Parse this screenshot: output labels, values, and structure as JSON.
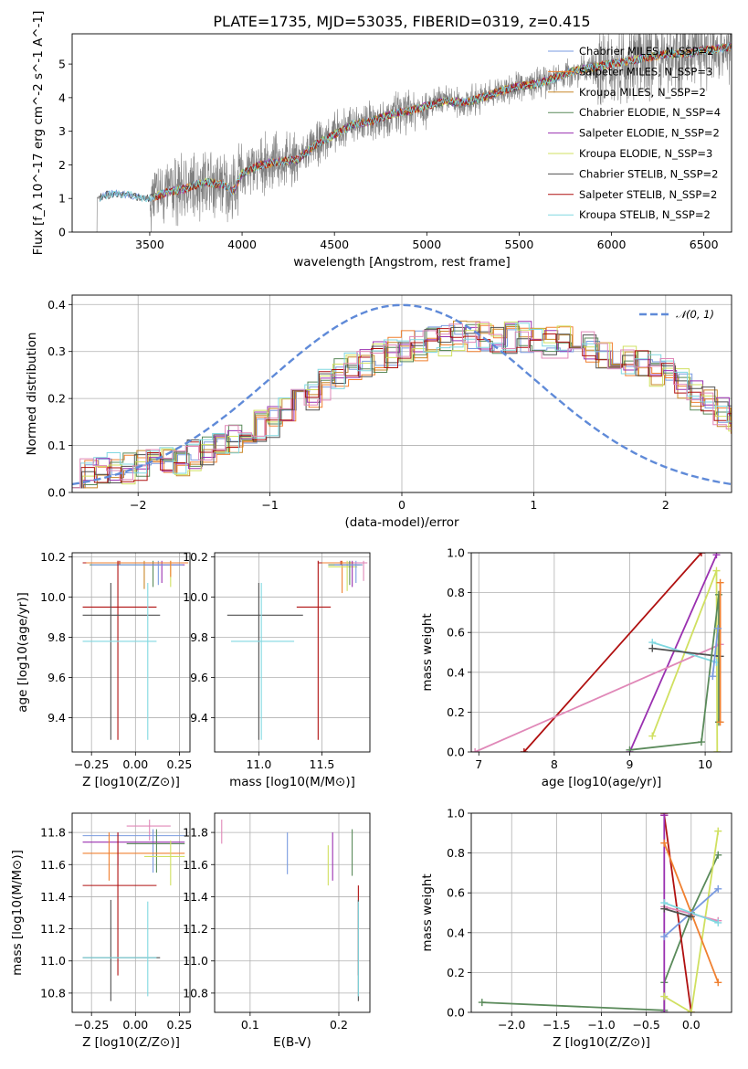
{
  "title": "PLATE=1735, MJD=53035, FIBERID=0319, z=0.415",
  "colors": {
    "data": "#808080",
    "models": [
      "#7a9be0",
      "#f08030",
      "#c8882a",
      "#5a8a5a",
      "#9a30b0",
      "#d0e060",
      "#505050",
      "#b01010",
      "#80d8e0"
    ],
    "pink": "#e088b8"
  },
  "chart_data": [
    {
      "id": "spectrum",
      "type": "line",
      "xlabel": "wavelength [Angstrom, rest frame]",
      "ylabel": "Flux [f_λ 10^-17 erg cm^-2 s^-1 A^-1]",
      "xlim": [
        3080,
        6650
      ],
      "ylim": [
        0,
        5.9
      ],
      "xticks": [
        3500,
        4000,
        4500,
        5000,
        5500,
        6000,
        6500
      ],
      "yticks": [
        0,
        1,
        2,
        3,
        4,
        5
      ],
      "legend_position": "top-right",
      "legend": [
        "Chabrier MILES, N_SSP=2",
        "Salpeter MILES, N_SSP=3",
        "Kroupa MILES, N_SSP=2",
        "Chabrier ELODIE, N_SSP=4",
        "Salpeter ELODIE, N_SSP=2",
        "Kroupa ELODIE, N_SSP=3",
        "Chabrier STELIB, N_SSP=2",
        "Salpeter STELIB, N_SSP=2",
        "Kroupa STELIB, N_SSP=2"
      ],
      "continuum": [
        [
          3210,
          1.0
        ],
        [
          3300,
          1.15
        ],
        [
          3400,
          1.1
        ],
        [
          3500,
          1.0
        ],
        [
          3600,
          1.2
        ],
        [
          3700,
          1.3
        ],
        [
          3800,
          1.5
        ],
        [
          3900,
          1.4
        ],
        [
          3950,
          1.2
        ],
        [
          4000,
          1.75
        ],
        [
          4100,
          2.0
        ],
        [
          4200,
          2.1
        ],
        [
          4300,
          2.15
        ],
        [
          4400,
          2.6
        ],
        [
          4500,
          2.9
        ],
        [
          4600,
          3.2
        ],
        [
          4700,
          3.3
        ],
        [
          4800,
          3.5
        ],
        [
          4900,
          3.6
        ],
        [
          5000,
          3.75
        ],
        [
          5100,
          3.9
        ],
        [
          5200,
          3.85
        ],
        [
          5300,
          4.0
        ],
        [
          5400,
          4.2
        ],
        [
          5500,
          4.35
        ],
        [
          5600,
          4.4
        ],
        [
          5700,
          4.6
        ],
        [
          5800,
          4.8
        ],
        [
          5900,
          4.9
        ],
        [
          6000,
          5.0
        ],
        [
          6100,
          5.1
        ],
        [
          6200,
          5.2
        ],
        [
          6300,
          5.3
        ],
        [
          6400,
          5.3
        ],
        [
          6500,
          5.4
        ],
        [
          6650,
          5.5
        ]
      ]
    },
    {
      "id": "residuals",
      "type": "histogram",
      "xlabel": "(data-model)/error",
      "ylabel": "Normed distribution",
      "xlim": [
        -2.5,
        2.5
      ],
      "ylim": [
        0,
        0.42
      ],
      "xticks": [
        -2,
        -1,
        0,
        1,
        2
      ],
      "yticks": [
        0.0,
        0.1,
        0.2,
        0.3,
        0.4
      ],
      "gaussian_label": "𝒩(0, 1)",
      "legend_position": "top-right",
      "bin_width": 0.1,
      "profile": [
        0.04,
        0.04,
        0.05,
        0.05,
        0.05,
        0.06,
        0.06,
        0.07,
        0.07,
        0.08,
        0.09,
        0.1,
        0.11,
        0.12,
        0.14,
        0.15,
        0.17,
        0.19,
        0.21,
        0.23,
        0.25,
        0.27,
        0.28,
        0.29,
        0.3,
        0.31,
        0.31,
        0.32,
        0.32,
        0.33,
        0.33,
        0.33,
        0.33,
        0.33,
        0.33,
        0.33,
        0.32,
        0.32,
        0.31,
        0.31,
        0.3,
        0.29,
        0.28,
        0.27,
        0.26,
        0.25,
        0.23,
        0.21,
        0.19,
        0.17,
        0.16,
        0.15,
        0.14,
        0.13,
        0.12,
        0.11,
        0.1,
        0.09,
        0.08,
        0.08,
        0.07,
        0.07,
        0.07,
        0.06,
        0.06,
        0.06,
        0.06,
        0.06,
        0.05,
        0.05,
        0.05
      ]
    },
    {
      "id": "age-vs-Z",
      "type": "errorbar",
      "xlabel": "Z [log10(Z/Z⊙)]",
      "ylabel": "age [log10(age/yr)]",
      "xlim": [
        -0.36,
        0.31
      ],
      "ylim": [
        9.23,
        10.22
      ],
      "xticks": [
        -0.25,
        0.0,
        0.25
      ],
      "xticklabels": [
        "−0.25",
        "0.00",
        "0.25"
      ],
      "yticks": [
        9.4,
        9.6,
        9.8,
        10.0,
        10.2
      ],
      "points": [
        {
          "c": 7,
          "x": -0.09,
          "y": 10.17,
          "xe": [
            -0.3,
            0.28
          ],
          "ye": [
            10.16,
            10.18
          ]
        },
        {
          "c": 2,
          "x": 0.05,
          "y": 10.17,
          "xe": [
            -0.28,
            0.27
          ],
          "ye": [
            10.04,
            10.18
          ]
        },
        {
          "c": 3,
          "x": 0.1,
          "y": 10.16,
          "xe": [
            -0.26,
            0.27
          ],
          "ye": [
            10.05,
            10.18
          ]
        },
        {
          "c": 4,
          "x": 0.15,
          "y": 10.16,
          "xe": [
            0.05,
            0.28
          ],
          "ye": [
            10.07,
            10.18
          ]
        },
        {
          "c": 0,
          "x": 0.13,
          "y": 10.16,
          "xe": [
            -0.25,
            0.27
          ],
          "ye": [
            10.06,
            10.18
          ]
        },
        {
          "c": 5,
          "x": 0.2,
          "y": 10.17,
          "xe": [
            -0.1,
            0.3
          ],
          "ye": [
            10.05,
            10.18
          ]
        },
        {
          "c": 1,
          "x": 0.2,
          "y": 10.17,
          "xe": [
            -0.28,
            0.3
          ],
          "ye": [
            10.1,
            10.18
          ]
        },
        {
          "c": 7,
          "x": -0.1,
          "y": 9.95,
          "xe": [
            -0.3,
            0.12
          ],
          "ye": [
            9.29,
            10.18
          ]
        },
        {
          "c": 6,
          "x": -0.14,
          "y": 9.91,
          "xe": [
            -0.3,
            0.14
          ],
          "ye": [
            9.29,
            10.07
          ]
        },
        {
          "c": 8,
          "x": 0.07,
          "y": 9.78,
          "xe": [
            -0.3,
            0.12
          ],
          "ye": [
            9.29,
            10.07
          ]
        }
      ]
    },
    {
      "id": "age-vs-mass",
      "type": "errorbar",
      "xlabel": "mass [log10(M/M⊙)]",
      "ylabel": "",
      "xlim": [
        10.65,
        11.88
      ],
      "ylim": [
        9.23,
        10.22
      ],
      "xticks": [
        11.0,
        11.5
      ],
      "yticks": [
        9.4,
        9.6,
        9.8,
        10.0,
        10.2
      ],
      "points": [
        {
          "c": 7,
          "x": 11.65,
          "y": 10.17,
          "xe": [
            11.47,
            11.8
          ],
          "ye": [
            10.16,
            10.18
          ]
        },
        {
          "c": 1,
          "x": 11.66,
          "y": 10.17,
          "xe": [
            11.5,
            11.8
          ],
          "ye": [
            10.02,
            10.18
          ]
        },
        {
          "c": 5,
          "x": 11.7,
          "y": 10.15,
          "xe": [
            11.55,
            11.78
          ],
          "ye": [
            10.03,
            10.18
          ]
        },
        {
          "c": 4,
          "x": 11.74,
          "y": 10.16,
          "xe": [
            11.6,
            11.8
          ],
          "ye": [
            10.05,
            10.18
          ]
        },
        {
          "c": 3,
          "x": 11.72,
          "y": 10.16,
          "xe": [
            11.55,
            11.82
          ],
          "ye": [
            10.06,
            10.18
          ]
        },
        {
          "c": 0,
          "x": 11.77,
          "y": 10.16,
          "xe": [
            11.6,
            11.82
          ],
          "ye": [
            10.07,
            10.18
          ]
        },
        {
          "c": 9,
          "x": 11.83,
          "y": 10.17,
          "xe": [
            11.75,
            11.86
          ],
          "ye": [
            10.08,
            10.18
          ]
        },
        {
          "c": 7,
          "x": 11.47,
          "y": 9.95,
          "xe": [
            11.3,
            11.57
          ],
          "ye": [
            9.29,
            10.18
          ]
        },
        {
          "c": 6,
          "x": 11.0,
          "y": 9.91,
          "xe": [
            10.75,
            11.35
          ],
          "ye": [
            9.29,
            10.07
          ]
        },
        {
          "c": 8,
          "x": 11.02,
          "y": 9.78,
          "xe": [
            10.78,
            11.28
          ],
          "ye": [
            9.29,
            10.07
          ]
        }
      ]
    },
    {
      "id": "weight-vs-age",
      "type": "line",
      "xlabel": "age [log10(age/yr)]",
      "ylabel": "mass weight",
      "xlim": [
        6.9,
        10.35
      ],
      "ylim": [
        0,
        1.0
      ],
      "xticks": [
        7,
        8,
        9,
        10
      ],
      "yticks": [
        0.0,
        0.2,
        0.4,
        0.6,
        0.8,
        1.0
      ],
      "series": [
        {
          "c": 7,
          "x": [
            7.6,
            9.95
          ],
          "y": [
            0.0,
            1.0
          ]
        },
        {
          "c": 4,
          "x": [
            9.0,
            10.15
          ],
          "y": [
            0.0,
            0.99
          ]
        },
        {
          "c": 5,
          "x": [
            9.3,
            10.15,
            10.16
          ],
          "y": [
            0.08,
            0.91,
            0.0
          ]
        },
        {
          "c": 9,
          "x": [
            6.95,
            10.2
          ],
          "y": [
            0.0,
            0.54
          ]
        },
        {
          "c": 8,
          "x": [
            9.3,
            10.15
          ],
          "y": [
            0.55,
            0.45
          ]
        },
        {
          "c": 6,
          "x": [
            9.3,
            10.2
          ],
          "y": [
            0.52,
            0.48
          ]
        },
        {
          "c": 3,
          "x": [
            9.0,
            9.95,
            10.18,
            10.18
          ],
          "y": [
            0.01,
            0.05,
            0.79,
            0.15
          ]
        },
        {
          "c": 1,
          "x": [
            10.2,
            10.2
          ],
          "y": [
            0.85,
            0.15
          ]
        },
        {
          "c": 0,
          "x": [
            10.1,
            10.17
          ],
          "y": [
            0.38,
            0.62
          ]
        }
      ]
    },
    {
      "id": "mass-vs-Z",
      "type": "errorbar",
      "xlabel": "Z [log10(Z/Z⊙)]",
      "ylabel": "mass [log10(M/M⊙)]",
      "xlim": [
        -0.36,
        0.31
      ],
      "ylim": [
        10.68,
        11.92
      ],
      "xticks": [
        -0.25,
        0.0,
        0.25
      ],
      "xticklabels": [
        "−0.25",
        "0.00",
        "0.25"
      ],
      "yticks": [
        10.8,
        11.0,
        11.2,
        11.4,
        11.6,
        11.8
      ],
      "points": [
        {
          "c": 9,
          "x": 0.08,
          "y": 11.84,
          "xe": [
            -0.05,
            0.2
          ],
          "ye": [
            11.75,
            11.88
          ]
        },
        {
          "c": 0,
          "x": 0.1,
          "y": 11.78,
          "xe": [
            -0.3,
            0.28
          ],
          "ye": [
            11.55,
            11.82
          ]
        },
        {
          "c": 4,
          "x": -0.1,
          "y": 11.74,
          "xe": [
            -0.3,
            0.28
          ],
          "ye": [
            11.6,
            11.8
          ]
        },
        {
          "c": 3,
          "x": 0.12,
          "y": 11.73,
          "xe": [
            -0.05,
            0.28
          ],
          "ye": [
            11.55,
            11.82
          ]
        },
        {
          "c": 1,
          "x": -0.15,
          "y": 11.67,
          "xe": [
            -0.3,
            0.28
          ],
          "ye": [
            11.5,
            11.8
          ]
        },
        {
          "c": 5,
          "x": 0.2,
          "y": 11.65,
          "xe": [
            0.05,
            0.28
          ],
          "ye": [
            11.47,
            11.75
          ]
        },
        {
          "c": 7,
          "x": -0.1,
          "y": 11.47,
          "xe": [
            -0.3,
            0.12
          ],
          "ye": [
            10.91,
            11.8
          ]
        },
        {
          "c": 6,
          "x": -0.14,
          "y": 11.02,
          "xe": [
            -0.3,
            0.14
          ],
          "ye": [
            10.75,
            11.38
          ]
        },
        {
          "c": 8,
          "x": 0.07,
          "y": 11.02,
          "xe": [
            -0.3,
            0.12
          ],
          "ye": [
            10.78,
            11.37
          ]
        }
      ]
    },
    {
      "id": "mass-vs-EBV",
      "type": "errorbar",
      "xlabel": "E(B-V)",
      "ylabel": "",
      "xlim": [
        0.06,
        0.235
      ],
      "ylim": [
        10.68,
        11.92
      ],
      "xticks": [
        0.1,
        0.2
      ],
      "yticks": [
        10.8,
        11.0,
        11.2,
        11.4,
        11.6,
        11.8
      ],
      "points": [
        {
          "c": 9,
          "x": 0.068,
          "ye": [
            11.73,
            11.88
          ]
        },
        {
          "c": 0,
          "x": 0.142,
          "ye": [
            11.54,
            11.8
          ]
        },
        {
          "c": 5,
          "x": 0.188,
          "ye": [
            11.47,
            11.72
          ]
        },
        {
          "c": 4,
          "x": 0.193,
          "ye": [
            11.5,
            11.8
          ]
        },
        {
          "c": 3,
          "x": 0.215,
          "ye": [
            11.53,
            11.82
          ]
        },
        {
          "c": 7,
          "x": 0.222,
          "ye": [
            10.91,
            11.47
          ]
        },
        {
          "c": 6,
          "x": 0.222,
          "ye": [
            10.75,
            11.38
          ]
        },
        {
          "c": 8,
          "x": 0.222,
          "ye": [
            10.78,
            11.37
          ]
        }
      ]
    },
    {
      "id": "weight-vs-Z",
      "type": "line",
      "xlabel": "Z [log10(Z/Z⊙)]",
      "ylabel": "mass weight",
      "xlim": [
        -2.45,
        0.45
      ],
      "ylim": [
        0,
        1.0
      ],
      "xticks": [
        -2.0,
        -1.5,
        -1.0,
        -0.5,
        0.0
      ],
      "xticklabels": [
        "−2.0",
        "−1.5",
        "−1.0",
        "−0.5",
        "0.0"
      ],
      "yticks": [
        0.0,
        0.2,
        0.4,
        0.6,
        0.8,
        1.0
      ],
      "series": [
        {
          "c": 3,
          "x": [
            -2.33,
            -0.3,
            -0.3,
            0.0,
            0.3
          ],
          "y": [
            0.05,
            0.01,
            0.15,
            0.5,
            0.79
          ]
        },
        {
          "c": 7,
          "x": [
            -0.3,
            -0.3,
            0.0
          ],
          "y": [
            1.0,
            0.99,
            0.0
          ]
        },
        {
          "c": 4,
          "x": [
            -0.3,
            -0.3
          ],
          "y": [
            0.99,
            0.0
          ]
        },
        {
          "c": 5,
          "x": [
            -0.3,
            0.0,
            0.3
          ],
          "y": [
            0.08,
            0.0,
            0.91
          ]
        },
        {
          "c": 1,
          "x": [
            -0.3,
            0.3
          ],
          "y": [
            0.85,
            0.15
          ]
        },
        {
          "c": 0,
          "x": [
            -0.3,
            0.3
          ],
          "y": [
            0.38,
            0.62
          ]
        },
        {
          "c": 9,
          "x": [
            -0.3,
            0.3
          ],
          "y": [
            0.53,
            0.46
          ]
        },
        {
          "c": 8,
          "x": [
            -0.3,
            0.3
          ],
          "y": [
            0.55,
            0.45
          ]
        },
        {
          "c": 6,
          "x": [
            -0.3,
            0.0
          ],
          "y": [
            0.52,
            0.48
          ]
        }
      ]
    }
  ]
}
